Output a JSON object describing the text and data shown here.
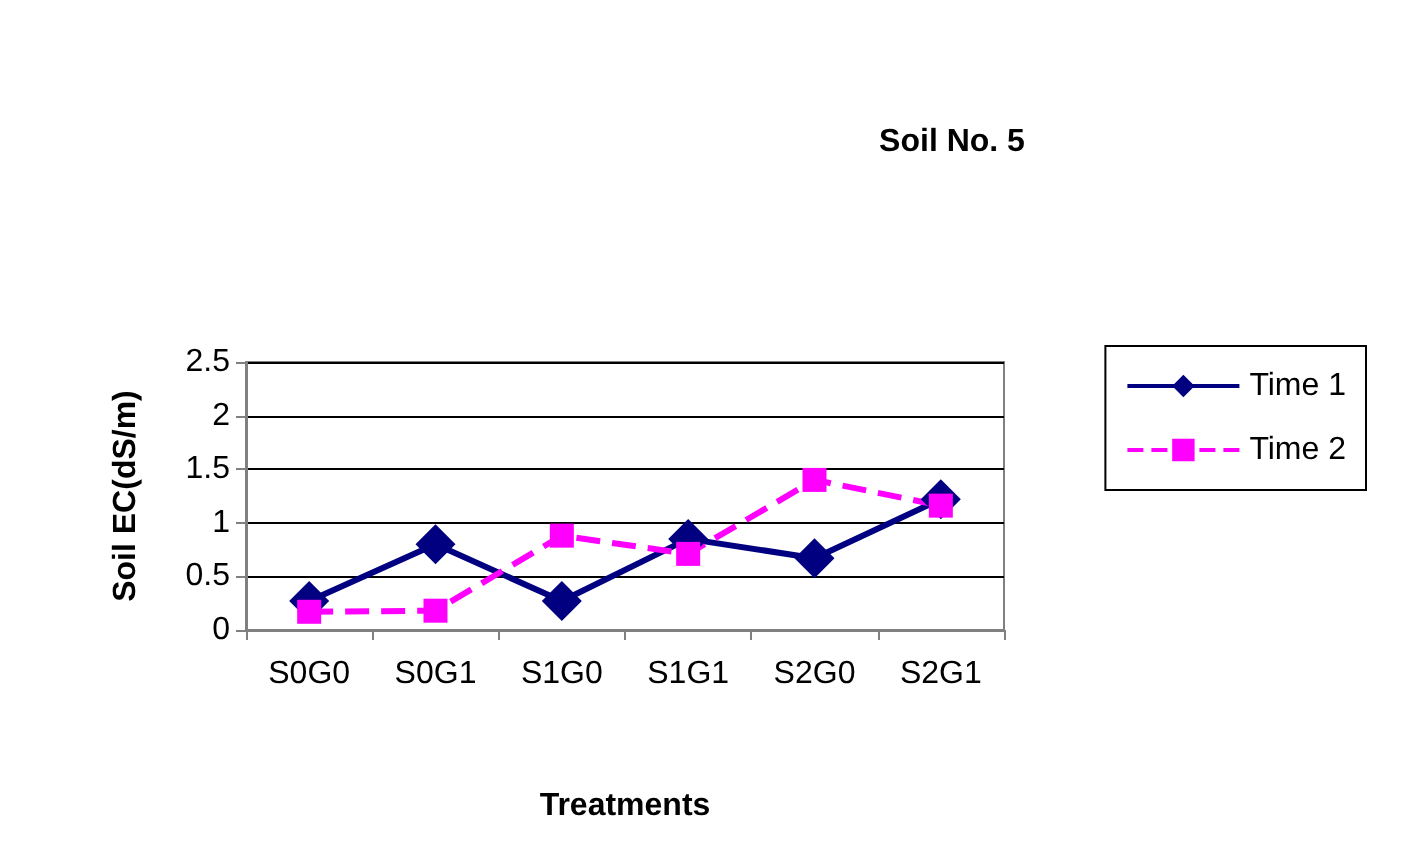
{
  "chart_data": {
    "type": "line",
    "title": "Soil No. 5",
    "xlabel": "Treatments",
    "ylabel": "Soil EC(dS/m)",
    "categories": [
      "S0G0",
      "S0G1",
      "S1G0",
      "S1G1",
      "S2G0",
      "S2G1"
    ],
    "series": [
      {
        "name": "Time 1",
        "color": "#000080",
        "values": [
          0.27,
          0.8,
          0.27,
          0.85,
          0.67,
          1.22
        ],
        "marker": "diamond",
        "line_style": "solid"
      },
      {
        "name": "Time 2",
        "color": "#ff00ff",
        "values": [
          0.17,
          0.18,
          0.88,
          0.71,
          1.4,
          1.16
        ],
        "marker": "square",
        "line_style": "dashed"
      }
    ],
    "ylim": [
      0,
      2.5
    ],
    "yticks": [
      0,
      0.5,
      1,
      1.5,
      2,
      2.5
    ],
    "grid": "y",
    "legend": "right"
  }
}
